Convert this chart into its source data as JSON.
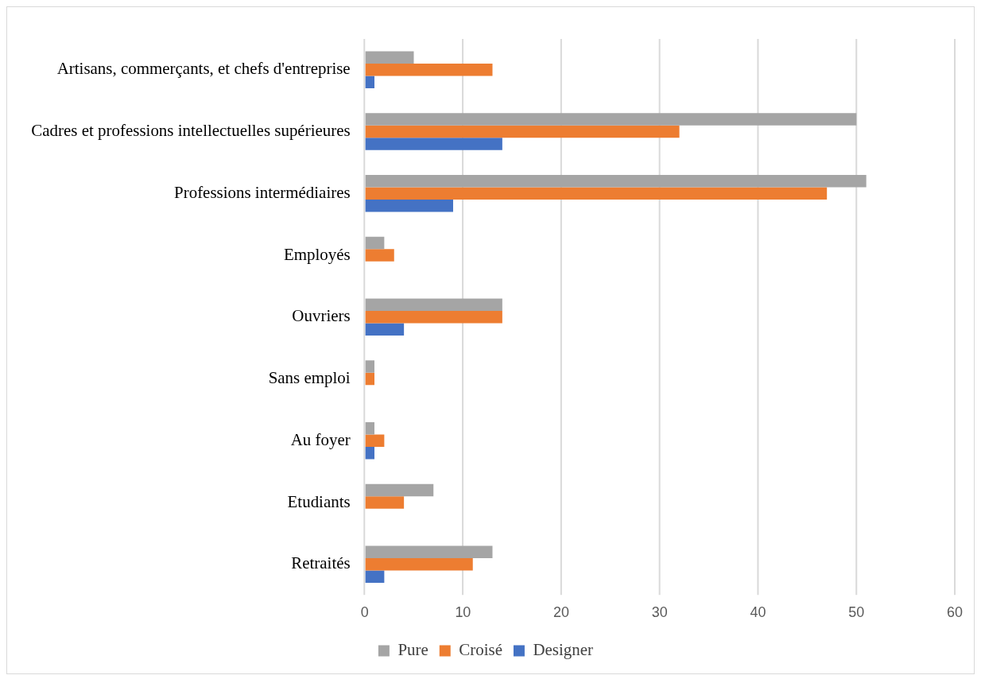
{
  "chart_data": {
    "type": "bar",
    "orientation": "horizontal",
    "categories": [
      "Artisans, commerçants, et chefs d'entreprise",
      "Cadres et professions intellectuelles supérieures",
      "Professions intermédiaires",
      "Employés",
      "Ouvriers",
      "Sans emploi",
      "Au foyer",
      "Etudiants",
      "Retraités"
    ],
    "series": [
      {
        "name": "Pure",
        "color": "#a5a5a5",
        "values": [
          5,
          50,
          51,
          2,
          14,
          1,
          1,
          7,
          13
        ]
      },
      {
        "name": "Croisé",
        "color": "#ed7d31",
        "values": [
          13,
          32,
          47,
          3,
          14,
          1,
          2,
          4,
          11
        ]
      },
      {
        "name": "Designer",
        "color": "#4472c4",
        "values": [
          1,
          14,
          9,
          0,
          4,
          0,
          1,
          0,
          2
        ]
      }
    ],
    "xlim": [
      0,
      60
    ],
    "xticks": [
      0,
      10,
      20,
      30,
      40,
      50,
      60
    ],
    "grid": "x",
    "legend": "bottom"
  }
}
